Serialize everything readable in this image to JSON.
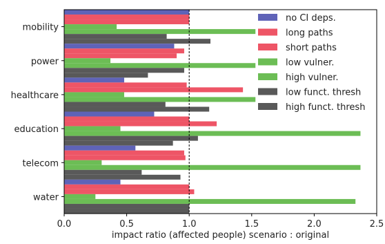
{
  "chart_data": {
    "type": "bar",
    "orientation": "horizontal",
    "title": "",
    "xlabel": "impact ratio (affected people) scenario : original",
    "ylabel": "",
    "xlim": [
      0,
      2.5
    ],
    "xticks": [
      "0.0",
      "0.5",
      "1.0",
      "1.5",
      "2.0",
      "2.5"
    ],
    "reference_line": 1.0,
    "grid": false,
    "legend_position": "top-right",
    "categories": [
      "mobility",
      "power",
      "healthcare",
      "education",
      "telecom",
      "water"
    ],
    "series": [
      {
        "name": "no CI deps.",
        "color": "#5f63b8",
        "values": [
          1.0,
          0.88,
          0.48,
          0.72,
          0.57,
          0.45
        ]
      },
      {
        "name": "long paths",
        "color": "#ee5566",
        "values": [
          1.0,
          0.96,
          0.98,
          1.0,
          0.96,
          1.0
        ]
      },
      {
        "name": "short paths",
        "color": "#ee5566",
        "values": [
          1.0,
          0.9,
          1.43,
          1.22,
          0.97,
          1.04
        ]
      },
      {
        "name": "low vulner.",
        "color": "#6cbd55",
        "values": [
          0.42,
          0.37,
          0.48,
          0.45,
          0.3,
          0.25
        ]
      },
      {
        "name": "high vulner.",
        "color": "#6cbd55",
        "values": [
          1.53,
          1.53,
          1.53,
          2.37,
          2.37,
          2.33
        ]
      },
      {
        "name": "low funct. thresh",
        "color": "#595959",
        "values": [
          0.82,
          0.96,
          0.81,
          1.07,
          0.62,
          1.0
        ]
      },
      {
        "name": "high funct. thresh",
        "color": "#595959",
        "values": [
          1.17,
          0.67,
          1.16,
          0.87,
          0.93,
          1.0
        ]
      }
    ]
  }
}
